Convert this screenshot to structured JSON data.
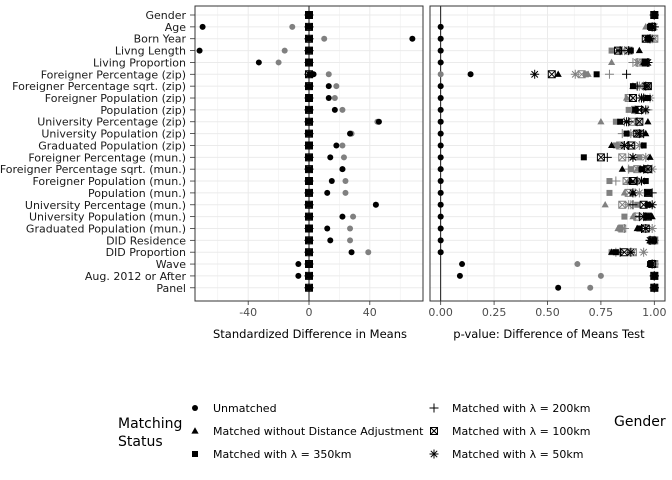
{
  "chart_data": [
    {
      "type": "scatter",
      "title": "",
      "xlabel": "Standardized Difference in Means",
      "ylabel": "",
      "xlim": [
        -75,
        75
      ],
      "xticks": [
        -40,
        0,
        40
      ],
      "xtick_labels": [
        "-40",
        "0",
        "40"
      ],
      "reference_line_x": 0,
      "grid": true,
      "categories": [
        "Gender",
        "Age",
        "Born Year",
        "Livng Length",
        "Living Proportion",
        "Foreigner Percentage (zip)",
        "Foreigner Percentage sqrt. (zip)",
        "Foreigner Population (zip)",
        "Population (zip)",
        "University Percentage (zip)",
        "University Population (zip)",
        "Graduated Population (zip)",
        "Foreigner Percentage (mun.)",
        "Foreigner Percentage sqrt. (mun.)",
        "Foreigner Population (mun.)",
        "Population (mun.)",
        "University Percentage (mun.)",
        "University Population (mun.)",
        "Graduated Population (mun.)",
        "DID Residence",
        "DID Proportion",
        "Wave",
        "Aug. 2012 or After",
        "Panel"
      ],
      "series": [
        {
          "name": "Unmatched",
          "color": "#000000",
          "shape": "circle",
          "values": [
            0,
            -70,
            68,
            -72,
            -33,
            3,
            13,
            13,
            17,
            46,
            27,
            18,
            14,
            22,
            15,
            12,
            44,
            22,
            12,
            14,
            28,
            -7,
            -7,
            0
          ]
        },
        {
          "name": "Unmatched",
          "color": "#808080",
          "shape": "circle",
          "values": [
            0,
            -11,
            10,
            -16,
            -20,
            13,
            18,
            17,
            22,
            45,
            28,
            22,
            23,
            22,
            24,
            24,
            44,
            29,
            27,
            27,
            39,
            0,
            0,
            0
          ]
        },
        {
          "name": "Matched without Distance Adjustment",
          "color": "#000000",
          "shape": "triangle",
          "values": [
            0,
            0,
            0,
            0,
            0,
            0,
            0,
            0,
            0,
            0,
            0,
            0,
            0,
            0,
            0,
            0,
            0,
            0,
            0,
            0,
            0,
            0,
            0,
            0
          ]
        },
        {
          "name": "Matched with λ = 350km",
          "color": "#000000",
          "shape": "square",
          "values": [
            0,
            0,
            0,
            0,
            0,
            1,
            0,
            0,
            0,
            0,
            0,
            0,
            0,
            0,
            0,
            0,
            0,
            0,
            0,
            0,
            0,
            0,
            0,
            0
          ]
        },
        {
          "name": "Matched with λ = 200km",
          "color": "#000000",
          "shape": "plus",
          "values": [
            0,
            0,
            0,
            0,
            0,
            0,
            0,
            0,
            0,
            0,
            0,
            0,
            0,
            0,
            0,
            0,
            0,
            0,
            0,
            0,
            0,
            0,
            0,
            0
          ]
        },
        {
          "name": "Matched with λ = 100km",
          "color": "#000000",
          "shape": "boxx",
          "values": [
            0,
            0,
            0,
            0,
            0,
            0,
            0,
            0,
            0,
            0,
            0,
            0,
            0,
            0,
            0,
            0,
            0,
            0,
            0,
            0,
            0,
            0,
            0,
            0
          ]
        },
        {
          "name": "Matched with λ = 50km",
          "color": "#000000",
          "shape": "star",
          "values": [
            0,
            0,
            0,
            0,
            0,
            0,
            0,
            0,
            0,
            0,
            0,
            0,
            0,
            0,
            0,
            0,
            0,
            0,
            0,
            0,
            0,
            0,
            0,
            0
          ]
        }
      ]
    },
    {
      "type": "scatter",
      "title": "",
      "xlabel": "p-value: Difference of Means Test",
      "ylabel": "",
      "xlim": [
        -0.05,
        1.05
      ],
      "xticks": [
        0,
        0.25,
        0.5,
        0.75,
        1
      ],
      "xtick_labels": [
        "0.00",
        "0.25",
        "0.50",
        "0.75",
        "1.00"
      ],
      "reference_line_x": 0,
      "grid": true,
      "categories": [
        "Gender",
        "Age",
        "Born Year",
        "Livng Length",
        "Living Proportion",
        "Foreigner Percentage (zip)",
        "Foreigner Percentage sqrt. (zip)",
        "Foreigner Population (zip)",
        "Population (zip)",
        "University Percentage (zip)",
        "University Population (zip)",
        "Graduated Population (zip)",
        "Foreigner Percentage (mun.)",
        "Foreigner Percentage sqrt. (mun.)",
        "Foreigner Population (mun.)",
        "Population (mun.)",
        "University Percentage (mun.)",
        "University Population (mun.)",
        "Graduated Population (mun.)",
        "DID Residence",
        "DID Proportion",
        "Wave",
        "Aug. 2012 or After",
        "Panel"
      ],
      "series": [
        {
          "name": "Unmatched",
          "color": "#000000",
          "shape": "circle",
          "values": [
            1,
            0,
            0,
            0,
            0,
            0.14,
            0,
            0,
            0,
            0,
            0,
            0,
            0,
            0,
            0,
            0,
            0,
            0,
            0,
            0,
            0,
            0.1,
            0.09,
            0.55
          ]
        },
        {
          "name": "Unmatched",
          "color": "#808080",
          "shape": "circle",
          "values": [
            1,
            0,
            0,
            0,
            0,
            0,
            0,
            0,
            0,
            0,
            0,
            0,
            0,
            0,
            0,
            0,
            0,
            0,
            0,
            0,
            0,
            0.64,
            0.75,
            0.7
          ]
        },
        {
          "name": "Matched without Distance Adjustment",
          "color": "#000000",
          "shape": "triangle",
          "values": [
            1,
            0.99,
            0.98,
            0.93,
            0.95,
            0.55,
            0.9,
            0.96,
            0.91,
            0.97,
            0.96,
            0.8,
            0.98,
            0.85,
            0.89,
            0.9,
            0.98,
            0.99,
            0.92,
            0.98,
            0.8,
            0.98,
            1,
            1
          ]
        },
        {
          "name": "Matched without Distance Adjustment",
          "color": "#808080",
          "shape": "triangle",
          "values": [
            1,
            0.96,
            0.97,
            0.83,
            0.8,
            0.69,
            0.92,
            0.87,
            0.96,
            0.75,
            0.88,
            0.84,
            0.9,
            0.92,
            0.88,
            0.86,
            0.77,
            0.9,
            0.83,
            0.99,
            0.83,
            0.99,
            1,
            1
          ]
        },
        {
          "name": "Matched with λ = 350km",
          "color": "#000000",
          "shape": "square",
          "values": [
            1,
            0.98,
            0.97,
            0.89,
            0.96,
            0.73,
            0.9,
            0.97,
            0.91,
            0.84,
            0.87,
            0.95,
            0.67,
            0.94,
            0.96,
            0.97,
            0.97,
            0.97,
            0.93,
            1,
            0.82,
            0.98,
            1,
            1
          ]
        },
        {
          "name": "Matched with λ = 350km",
          "color": "#808080",
          "shape": "square",
          "values": [
            1,
            0.98,
            0.98,
            0.8,
            0.95,
            0.68,
            0.97,
            0.95,
            0.88,
            0.82,
            0.94,
            0.82,
            0.93,
            0.89,
            0.79,
            0.79,
            0.92,
            0.86,
            0.84,
            0.99,
            0.8,
            0.99,
            1,
            1
          ]
        },
        {
          "name": "Matched with λ = 200km",
          "color": "#000000",
          "shape": "plus",
          "values": [
            1,
            1,
            0.98,
            0.84,
            0.97,
            0.87,
            0.92,
            0.95,
            0.94,
            0.88,
            0.95,
            0.88,
            0.78,
            0.97,
            0.92,
            0.99,
            0.9,
            0.93,
            0.94,
            0.98,
            0.84,
            0.99,
            1,
            1
          ]
        },
        {
          "name": "Matched with λ = 200km",
          "color": "#808080",
          "shape": "plus",
          "values": [
            1,
            0.99,
            0.97,
            0.86,
            0.9,
            0.79,
            0.95,
            0.93,
            0.97,
            0.86,
            0.85,
            0.91,
            0.88,
            0.88,
            0.82,
            0.91,
            0.89,
            0.91,
            0.86,
            1,
            0.82,
            1,
            1,
            1
          ]
        },
        {
          "name": "Matched with λ = 100km",
          "color": "#000000",
          "shape": "boxx",
          "values": [
            1,
            0.99,
            0.96,
            0.83,
            0.96,
            0.52,
            0.97,
            0.9,
            0.93,
            0.93,
            0.92,
            0.89,
            0.75,
            0.97,
            0.9,
            0.97,
            0.95,
            0.97,
            0.96,
            0.99,
            0.86,
            0.99,
            1,
            1
          ]
        },
        {
          "name": "Matched with λ = 100km",
          "color": "#808080",
          "shape": "boxx",
          "values": [
            1,
            0.99,
            1,
            0.88,
            0.93,
            0.66,
            0.96,
            0.88,
            0.91,
            0.9,
            0.93,
            0.84,
            0.85,
            0.92,
            0.87,
            0.88,
            0.85,
            0.92,
            0.85,
            1,
            0.9,
            1,
            1,
            1
          ]
        },
        {
          "name": "Matched with λ = 50km",
          "color": "#000000",
          "shape": "star",
          "values": [
            1,
            0.99,
            0.98,
            0.88,
            0.97,
            0.44,
            0.96,
            0.94,
            0.96,
            0.87,
            0.93,
            0.86,
            0.9,
            0.95,
            0.94,
            0.9,
            0.99,
            0.95,
            0.96,
            0.98,
            0.89,
            0.99,
            1,
            1
          ]
        },
        {
          "name": "Matched with λ = 50km",
          "color": "#808080",
          "shape": "star",
          "values": [
            1,
            1,
            0.99,
            0.85,
            0.92,
            0.63,
            0.93,
            0.98,
            0.91,
            0.92,
            0.89,
            0.93,
            0.96,
            0.99,
            0.92,
            0.93,
            0.88,
            0.96,
            0.99,
            1,
            0.95,
            1,
            1,
            1
          ]
        }
      ]
    }
  ],
  "legend": {
    "title_line1": "Matching",
    "title_line2": "Status",
    "items": [
      {
        "label": "Unmatched",
        "shape": "circle"
      },
      {
        "label": "Matched without Distance Adjustment",
        "shape": "triangle"
      },
      {
        "label": "Matched with λ = 350km",
        "shape": "square"
      },
      {
        "label": "Matched with λ = 200km",
        "shape": "plus"
      },
      {
        "label": "Matched with λ = 100km",
        "shape": "boxx"
      },
      {
        "label": "Matched with λ = 50km",
        "shape": "star"
      }
    ],
    "gender_title": "Gender"
  },
  "colors": {
    "primary": "#000000",
    "secondary": "#808080",
    "grid": "#ebebeb",
    "frame": "#333333"
  }
}
